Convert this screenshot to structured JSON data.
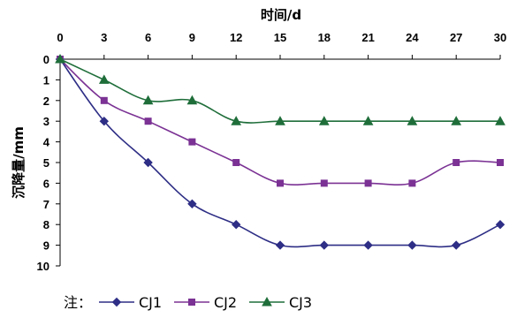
{
  "chart_data": {
    "type": "line",
    "xlabel": "时间/d",
    "ylabel": "沉降量/mm",
    "x_axis_position": "top",
    "y_axis_inverted": true,
    "x": [
      0,
      3,
      6,
      9,
      12,
      15,
      18,
      21,
      24,
      27,
      30
    ],
    "xlim": [
      0,
      30
    ],
    "ylim": [
      0,
      10
    ],
    "x_ticks": [
      "0",
      "3",
      "6",
      "9",
      "12",
      "15",
      "18",
      "21",
      "24",
      "27",
      "30"
    ],
    "y_ticks": [
      "0",
      "1",
      "2",
      "3",
      "4",
      "5",
      "6",
      "7",
      "8",
      "9",
      "10"
    ],
    "grid": false,
    "legend_prefix": "注：",
    "legend_position": "bottom-left",
    "series": [
      {
        "name": "CJ1",
        "marker": "diamond",
        "color": "#2e2e86",
        "values": [
          0,
          3,
          5,
          7,
          8,
          9,
          9,
          9,
          9,
          9,
          8
        ]
      },
      {
        "name": "CJ2",
        "marker": "square",
        "color": "#7b3294",
        "values": [
          0,
          2,
          3,
          4,
          5,
          6,
          6,
          6,
          6,
          5,
          5
        ]
      },
      {
        "name": "CJ3",
        "marker": "triangle",
        "color": "#1f6e3a",
        "values": [
          0,
          1,
          2,
          2,
          3,
          3,
          3,
          3,
          3,
          3,
          3
        ]
      }
    ]
  }
}
